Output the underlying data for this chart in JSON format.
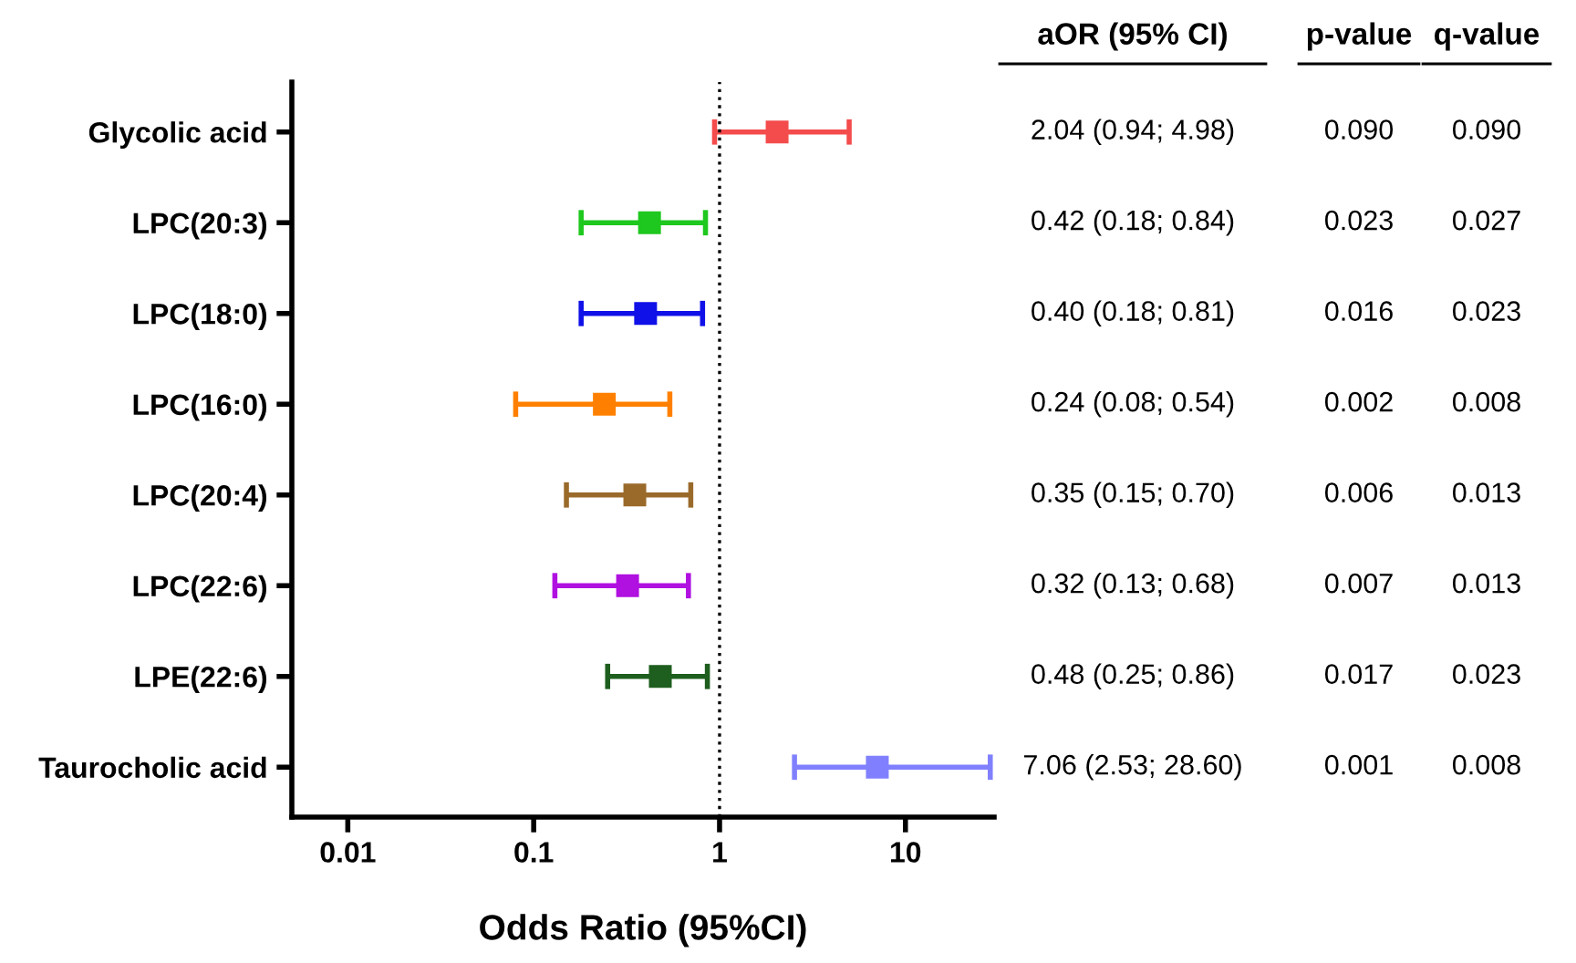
{
  "chart_data": {
    "type": "scatter",
    "orientation": "horizontal",
    "log": "x",
    "marker": "square",
    "grid": false,
    "categories": [
      "Glycolic acid",
      "LPC(20:3)",
      "LPC(18:0)",
      "LPC(16:0)",
      "LPC(20:4)",
      "LPC(22:6)",
      "LPE(22:6)",
      "Taurocholic acid"
    ],
    "values": [
      2.04,
      0.42,
      0.4,
      0.24,
      0.35,
      0.32,
      0.48,
      7.06
    ],
    "errors": [
      [
        0.94,
        4.98
      ],
      [
        0.18,
        0.84
      ],
      [
        0.18,
        0.81
      ],
      [
        0.08,
        0.54
      ],
      [
        0.15,
        0.7
      ],
      [
        0.13,
        0.68
      ],
      [
        0.25,
        0.86
      ],
      [
        2.53,
        28.6
      ]
    ],
    "colors": [
      "#f44c4c",
      "#1ec81e",
      "#1010e8",
      "#ff8000",
      "#9a6a2a",
      "#b010e0",
      "#1e5e1e",
      "#8080ff"
    ],
    "value_labels": [
      "2.04 (0.94; 4.98)",
      "0.42 (0.18; 0.84)",
      "0.40 (0.18; 0.81)",
      "0.24 (0.08; 0.54)",
      "0.35 (0.15; 0.70)",
      "0.32 (0.13; 0.68)",
      "0.48 (0.25; 0.86)",
      "7.06 (2.53; 28.60)"
    ],
    "xlim": [
      0.005,
      30
    ],
    "xticks": [
      0.01,
      0.1,
      1,
      10
    ],
    "xlabel": "Odds Ratio (95%CI)",
    "ref_lines": [
      {
        "axis": "x",
        "value": 1,
        "line_style": "dotted",
        "color": "#000000"
      }
    ],
    "annotations": [
      "aOR (95% CI)",
      "p-value",
      "q-value",
      "0.090",
      "0.090",
      "0.023",
      "0.027",
      "0.016",
      "0.023",
      "0.002",
      "0.008",
      "0.006",
      "0.013",
      "0.007",
      "0.013",
      "0.017",
      "0.023",
      "0.001",
      "0.008"
    ]
  }
}
